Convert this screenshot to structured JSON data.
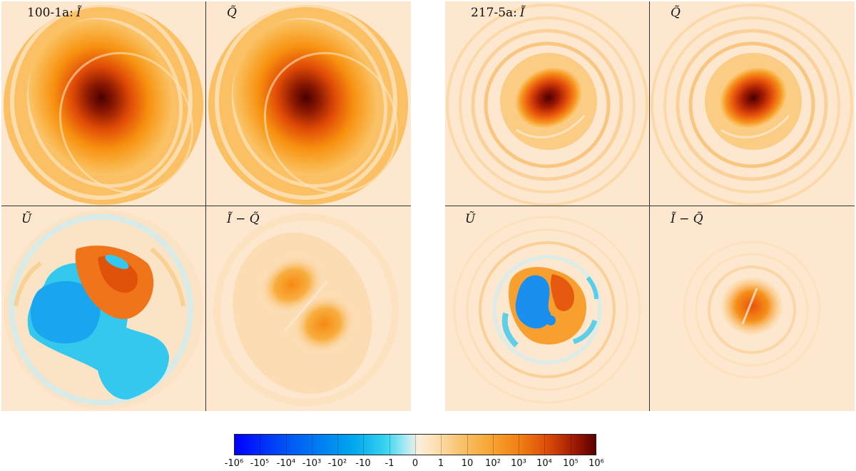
{
  "left_group": {
    "panels": [
      {
        "id": "100-1a:",
        "symbol": "Ĩ"
      },
      {
        "id": "",
        "symbol": "Q̃"
      },
      {
        "id": "",
        "symbol": "Ũ"
      },
      {
        "id": "",
        "symbol": "Ĩ − Q̃"
      }
    ]
  },
  "right_group": {
    "panels": [
      {
        "id": "217-5a:",
        "symbol": "Ĩ"
      },
      {
        "id": "",
        "symbol": "Q̃"
      },
      {
        "id": "",
        "symbol": "Ũ"
      },
      {
        "id": "",
        "symbol": "Ĩ − Q̃"
      }
    ]
  },
  "colorbar": {
    "ticks": [
      "-10⁶",
      "-10⁵",
      "-10⁴",
      "-10³",
      "-10²",
      "-10",
      "-1",
      "0",
      "1",
      "10",
      "10²",
      "10³",
      "10⁴",
      "10⁵",
      "10⁶"
    ]
  },
  "colors": {
    "background": "#fde8cf",
    "max_positive": "#5a0000",
    "max_negative": "#0000ff"
  }
}
